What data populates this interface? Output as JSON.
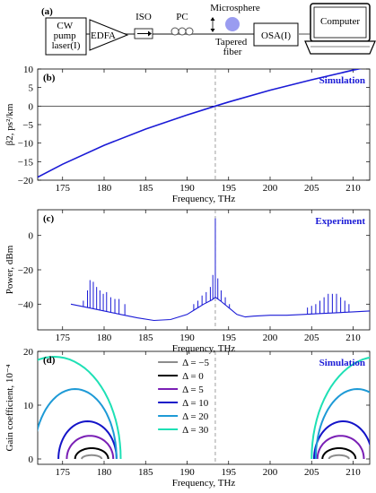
{
  "setup": {
    "label": "(a)",
    "pump": "CW\npump\nlaser(I)",
    "edfa": "EDFA",
    "iso": "ISO",
    "pc": "PC",
    "microsphere": "Microsphere",
    "fiber": "Tapered\nfiber",
    "osa": "OSA(I)",
    "computer": "Computer"
  },
  "chart_data": [
    {
      "type": "line",
      "panel": "(b)",
      "annotation": "Simulation",
      "xlabel": "Frequency, THz",
      "ylabel": "β2, ps²/km",
      "xlim": [
        172,
        212
      ],
      "ylim": [
        -20,
        10
      ],
      "xticks": [
        175,
        180,
        185,
        190,
        195,
        200,
        205,
        210
      ],
      "yticks": [
        -20,
        -15,
        -10,
        -5,
        0,
        5,
        10
      ],
      "zero_line": true,
      "marker_x": 193.4,
      "series": [
        {
          "color": "#1a1ad6",
          "x": [
            172,
            175,
            180,
            185,
            190,
            193.4,
            195,
            200,
            205,
            210,
            212
          ],
          "y": [
            -19.2,
            -15.7,
            -10.6,
            -6.2,
            -2.4,
            0,
            1.1,
            4.3,
            7.1,
            9.7,
            10.6
          ]
        }
      ]
    },
    {
      "type": "line",
      "panel": "(c)",
      "annotation": "Experiment",
      "xlabel": "Frequency, THz",
      "ylabel": "Power, dBm",
      "xlim": [
        172,
        212
      ],
      "ylim": [
        -55,
        15
      ],
      "xticks": [
        175,
        180,
        185,
        190,
        195,
        200,
        205,
        210
      ],
      "yticks": [
        0,
        -20,
        -40
      ],
      "marker_x": 193.4,
      "series": [
        {
          "color": "#1a1ad6",
          "x": [
            176,
            178,
            180,
            182,
            184,
            186,
            188,
            190,
            191,
            192,
            193,
            193.4,
            194,
            195,
            196,
            197,
            198,
            200,
            202,
            204,
            206,
            208,
            210,
            212
          ],
          "y": [
            -40,
            -42,
            -44,
            -46,
            -48,
            -49.5,
            -49,
            -46,
            -43,
            -40,
            -37.5,
            -36,
            -38,
            -42,
            -46,
            -47.5,
            -47,
            -46.5,
            -46.5,
            -46,
            -45.5,
            -45,
            -44.5,
            -44
          ]
        }
      ],
      "peaks": [
        {
          "x": 177.5,
          "y": -38
        },
        {
          "x": 178.0,
          "y": -32
        },
        {
          "x": 178.3,
          "y": -26
        },
        {
          "x": 178.7,
          "y": -27
        },
        {
          "x": 179.1,
          "y": -30
        },
        {
          "x": 179.5,
          "y": -32
        },
        {
          "x": 179.9,
          "y": -34
        },
        {
          "x": 180.3,
          "y": -33
        },
        {
          "x": 180.8,
          "y": -36
        },
        {
          "x": 181.3,
          "y": -37
        },
        {
          "x": 181.8,
          "y": -37
        },
        {
          "x": 182.5,
          "y": -40
        },
        {
          "x": 190.8,
          "y": -40
        },
        {
          "x": 191.3,
          "y": -38
        },
        {
          "x": 191.8,
          "y": -35
        },
        {
          "x": 192.3,
          "y": -33
        },
        {
          "x": 192.8,
          "y": -30
        },
        {
          "x": 193.1,
          "y": -23
        },
        {
          "x": 193.4,
          "y": 10
        },
        {
          "x": 193.7,
          "y": -25
        },
        {
          "x": 194.1,
          "y": -32
        },
        {
          "x": 194.6,
          "y": -36
        },
        {
          "x": 195.1,
          "y": -40
        },
        {
          "x": 204.5,
          "y": -42
        },
        {
          "x": 205.0,
          "y": -41
        },
        {
          "x": 205.5,
          "y": -40
        },
        {
          "x": 206.0,
          "y": -38
        },
        {
          "x": 206.5,
          "y": -36
        },
        {
          "x": 207.0,
          "y": -34
        },
        {
          "x": 207.5,
          "y": -34
        },
        {
          "x": 208.0,
          "y": -34
        },
        {
          "x": 208.5,
          "y": -36
        },
        {
          "x": 209.0,
          "y": -38
        },
        {
          "x": 209.5,
          "y": -40
        }
      ]
    },
    {
      "type": "line",
      "panel": "(d)",
      "annotation": "Simulation",
      "xlabel": "Frequency, THz",
      "ylabel": "Gain coefficient, 10⁻⁴",
      "xlim": [
        172,
        212
      ],
      "ylim": [
        -1,
        20
      ],
      "xticks": [
        175,
        180,
        185,
        190,
        195,
        200,
        205,
        210
      ],
      "yticks": [
        0,
        10,
        20
      ],
      "marker_x": 193.4,
      "legend_position": "upper-center",
      "series": [
        {
          "name": "Δ = −5",
          "color": "#8c8c8c",
          "height": 0.7,
          "left_center": 178.5,
          "right_center": 208.3,
          "half_width": 1.2
        },
        {
          "name": "Δ = 0",
          "color": "#000000",
          "height": 2.0,
          "left_center": 178.5,
          "right_center": 208.3,
          "half_width": 2.0
        },
        {
          "name": "Δ = 5",
          "color": "#7a1fb5",
          "height": 4.3,
          "left_center": 178.3,
          "right_center": 208.5,
          "half_width": 2.8
        },
        {
          "name": "Δ = 10",
          "color": "#1414c8",
          "height": 7.0,
          "left_center": 178.0,
          "right_center": 208.8,
          "half_width": 3.5
        },
        {
          "name": "Δ = 20",
          "color": "#1e9ad6",
          "height": 13.0,
          "left_center": 176.5,
          "right_center": 210.5,
          "half_width": 5.0
        },
        {
          "name": "Δ = 30",
          "color": "#1ee0b5",
          "height": 19.0,
          "left_center": 174.0,
          "right_center": 213.0,
          "half_width": 8.0
        }
      ]
    }
  ]
}
